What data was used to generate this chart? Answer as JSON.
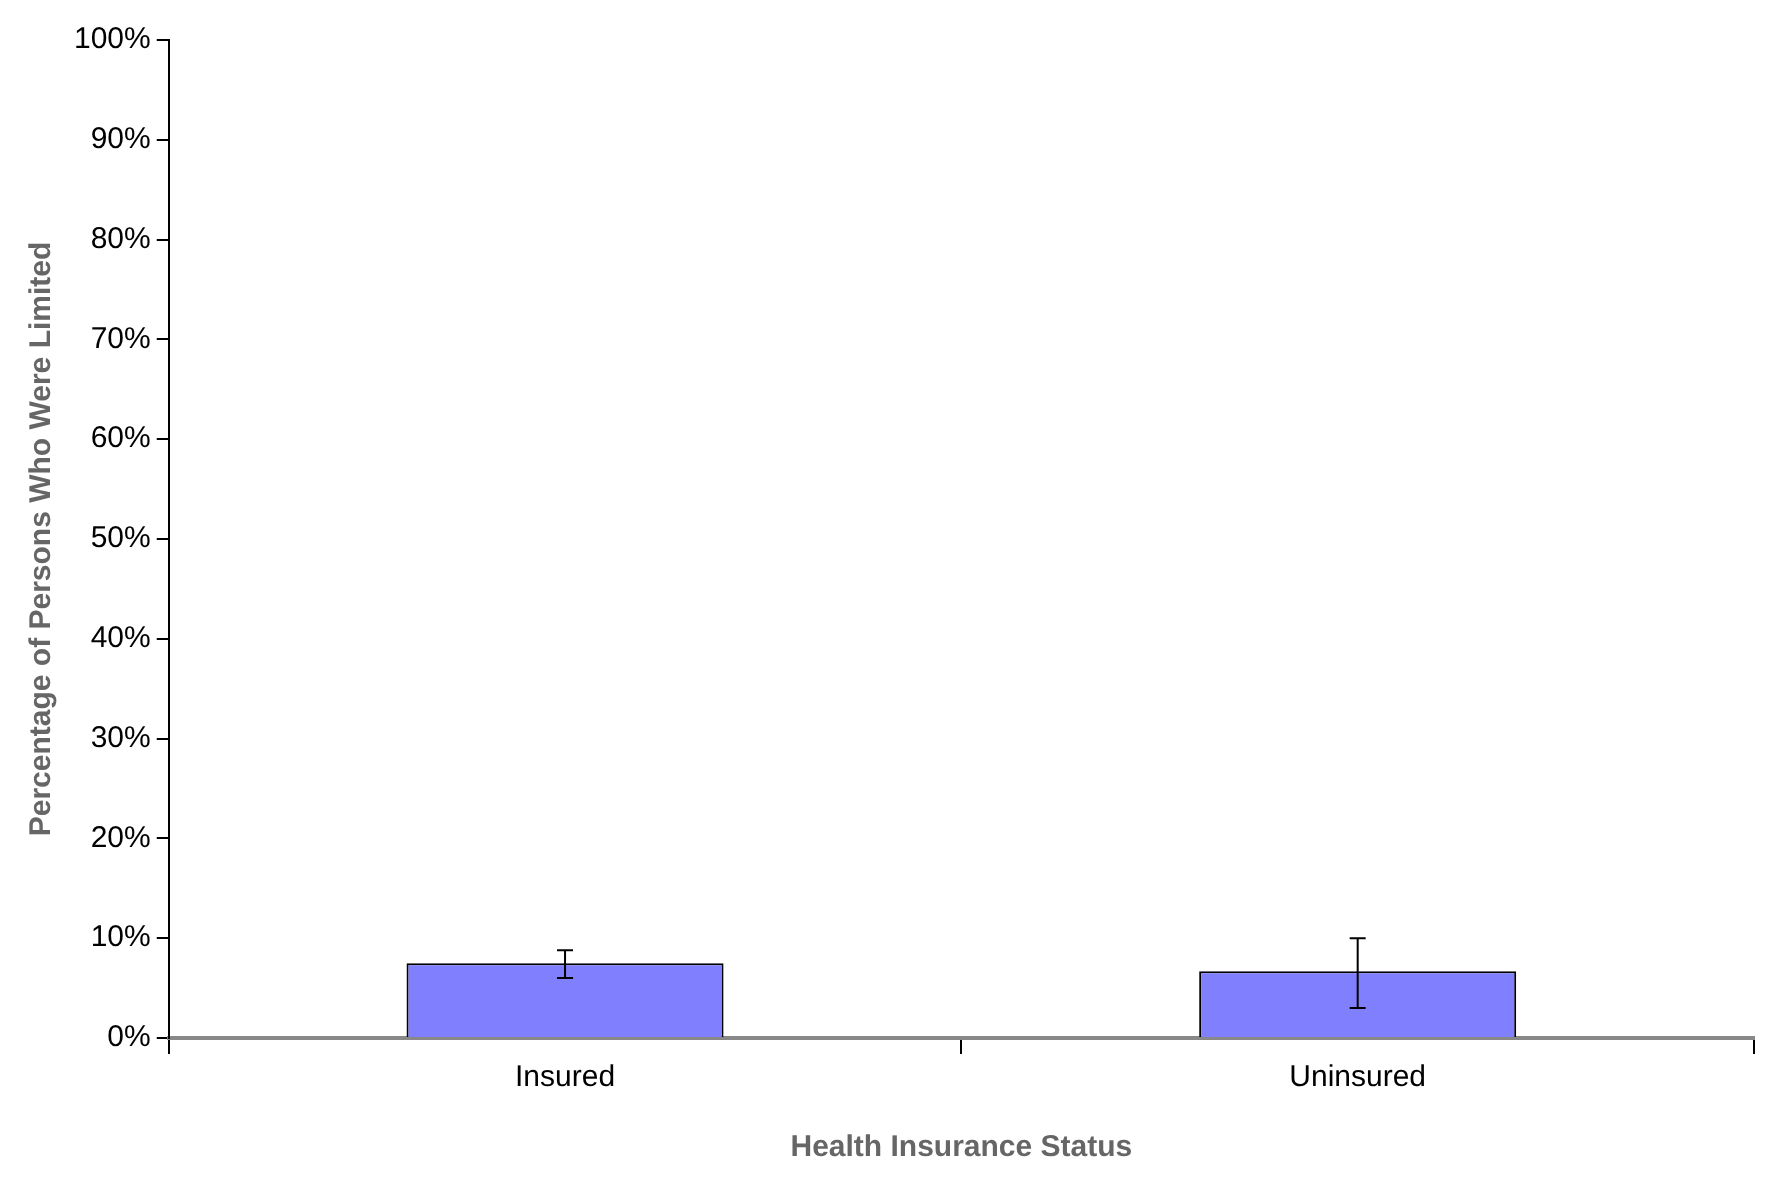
{
  "chart_data": {
    "type": "bar",
    "xlabel": "Health Insurance Status",
    "ylabel": "Percentage of Persons Who Were Limited",
    "categories": [
      "Insured",
      "Uninsured"
    ],
    "values": [
      7.5,
      6.7
    ],
    "color": "#8080ff",
    "errors": [
      [
        6.0,
        8.8
      ],
      [
        3.0,
        10.0
      ]
    ],
    "ylim": [
      0,
      100
    ],
    "yticks": [
      {
        "value": 0,
        "label": "0%"
      },
      {
        "value": 10,
        "label": "10%"
      },
      {
        "value": 20,
        "label": "20%"
      },
      {
        "value": 30,
        "label": "30%"
      },
      {
        "value": 40,
        "label": "40%"
      },
      {
        "value": 50,
        "label": "50%"
      },
      {
        "value": 60,
        "label": "60%"
      },
      {
        "value": 70,
        "label": "70%"
      },
      {
        "value": 80,
        "label": "80%"
      },
      {
        "value": 90,
        "label": "90%"
      },
      {
        "value": 100,
        "label": "100%"
      }
    ],
    "grid": false,
    "legend": false
  }
}
